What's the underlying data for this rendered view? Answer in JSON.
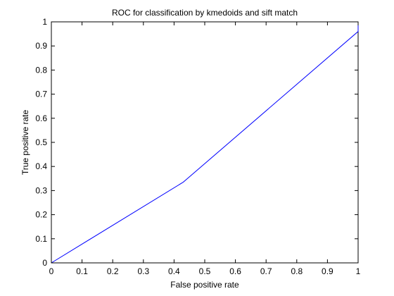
{
  "chart_data": {
    "type": "line",
    "title": "ROC for classification by kmedoids and sift match",
    "xlabel": "False positive rate",
    "ylabel": "True positive rate",
    "xlim": [
      0,
      1
    ],
    "ylim": [
      0,
      1
    ],
    "xticks": [
      0,
      0.1,
      0.2,
      0.3,
      0.4,
      0.5,
      0.6,
      0.7,
      0.8,
      0.9,
      1
    ],
    "xtick_labels": [
      "0",
      "0.1",
      "0.2",
      "0.3",
      "0.4",
      "0.5",
      "0.6",
      "0.7",
      "0.8",
      "0.9",
      "1"
    ],
    "yticks": [
      0,
      0.1,
      0.2,
      0.3,
      0.4,
      0.5,
      0.6,
      0.7,
      0.8,
      0.9,
      1
    ],
    "ytick_labels": [
      "0",
      "0.1",
      "0.2",
      "0.3",
      "0.4",
      "0.5",
      "0.6",
      "0.7",
      "0.8",
      "0.9",
      "1"
    ],
    "grid": false,
    "series": [
      {
        "color": "#0000ff",
        "x": [
          0,
          0.43,
          1,
          1
        ],
        "y": [
          0,
          0.335,
          0.96,
          1
        ]
      }
    ]
  }
}
